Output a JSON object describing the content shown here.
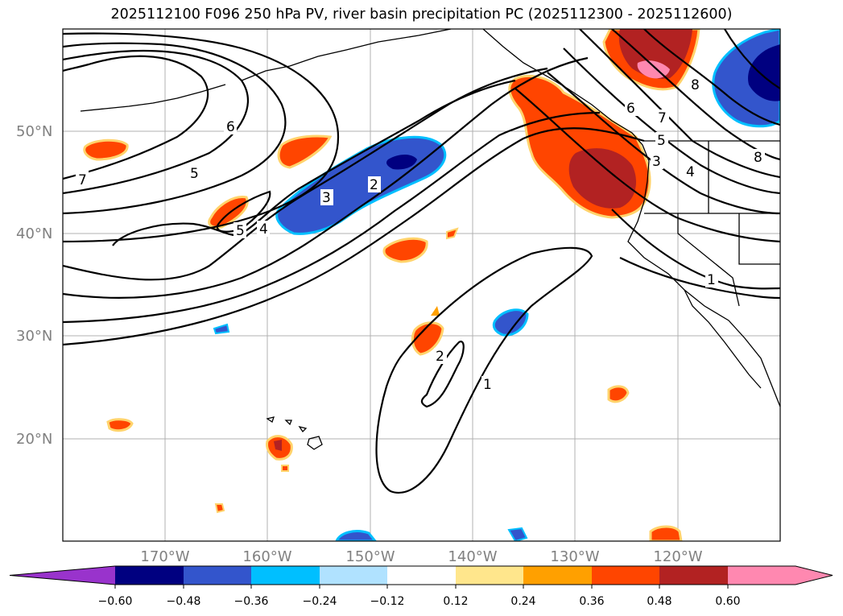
{
  "title": "2025112100 F096 250 hPa PV, river basin precipitation PC (2025112300 - 2025112600)",
  "map": {
    "lat_labels": [
      "50°N",
      "40°N",
      "30°N",
      "20°N"
    ],
    "lon_labels": [
      "170°W",
      "160°W",
      "150°W",
      "140°W",
      "130°W",
      "120°W"
    ],
    "contour_labels": [
      "7",
      "6",
      "5",
      "5",
      "4",
      "3",
      "2",
      "2",
      "1",
      "1",
      "8",
      "7",
      "6",
      "5",
      "4",
      "3",
      "8"
    ]
  },
  "colorbar": {
    "ticks": [
      "−0.60",
      "−0.48",
      "−0.36",
      "−0.24",
      "−0.12",
      "0.12",
      "0.24",
      "0.36",
      "0.48",
      "0.60"
    ],
    "colors": [
      "#9933cc",
      "#000080",
      "#3355cc",
      "#00bfff",
      "#b0e2ff",
      "#ffffff",
      "#ffe68c",
      "#ffa000",
      "#ff4500",
      "#b22222",
      "#ff88b0",
      "#ff88b0"
    ]
  }
}
